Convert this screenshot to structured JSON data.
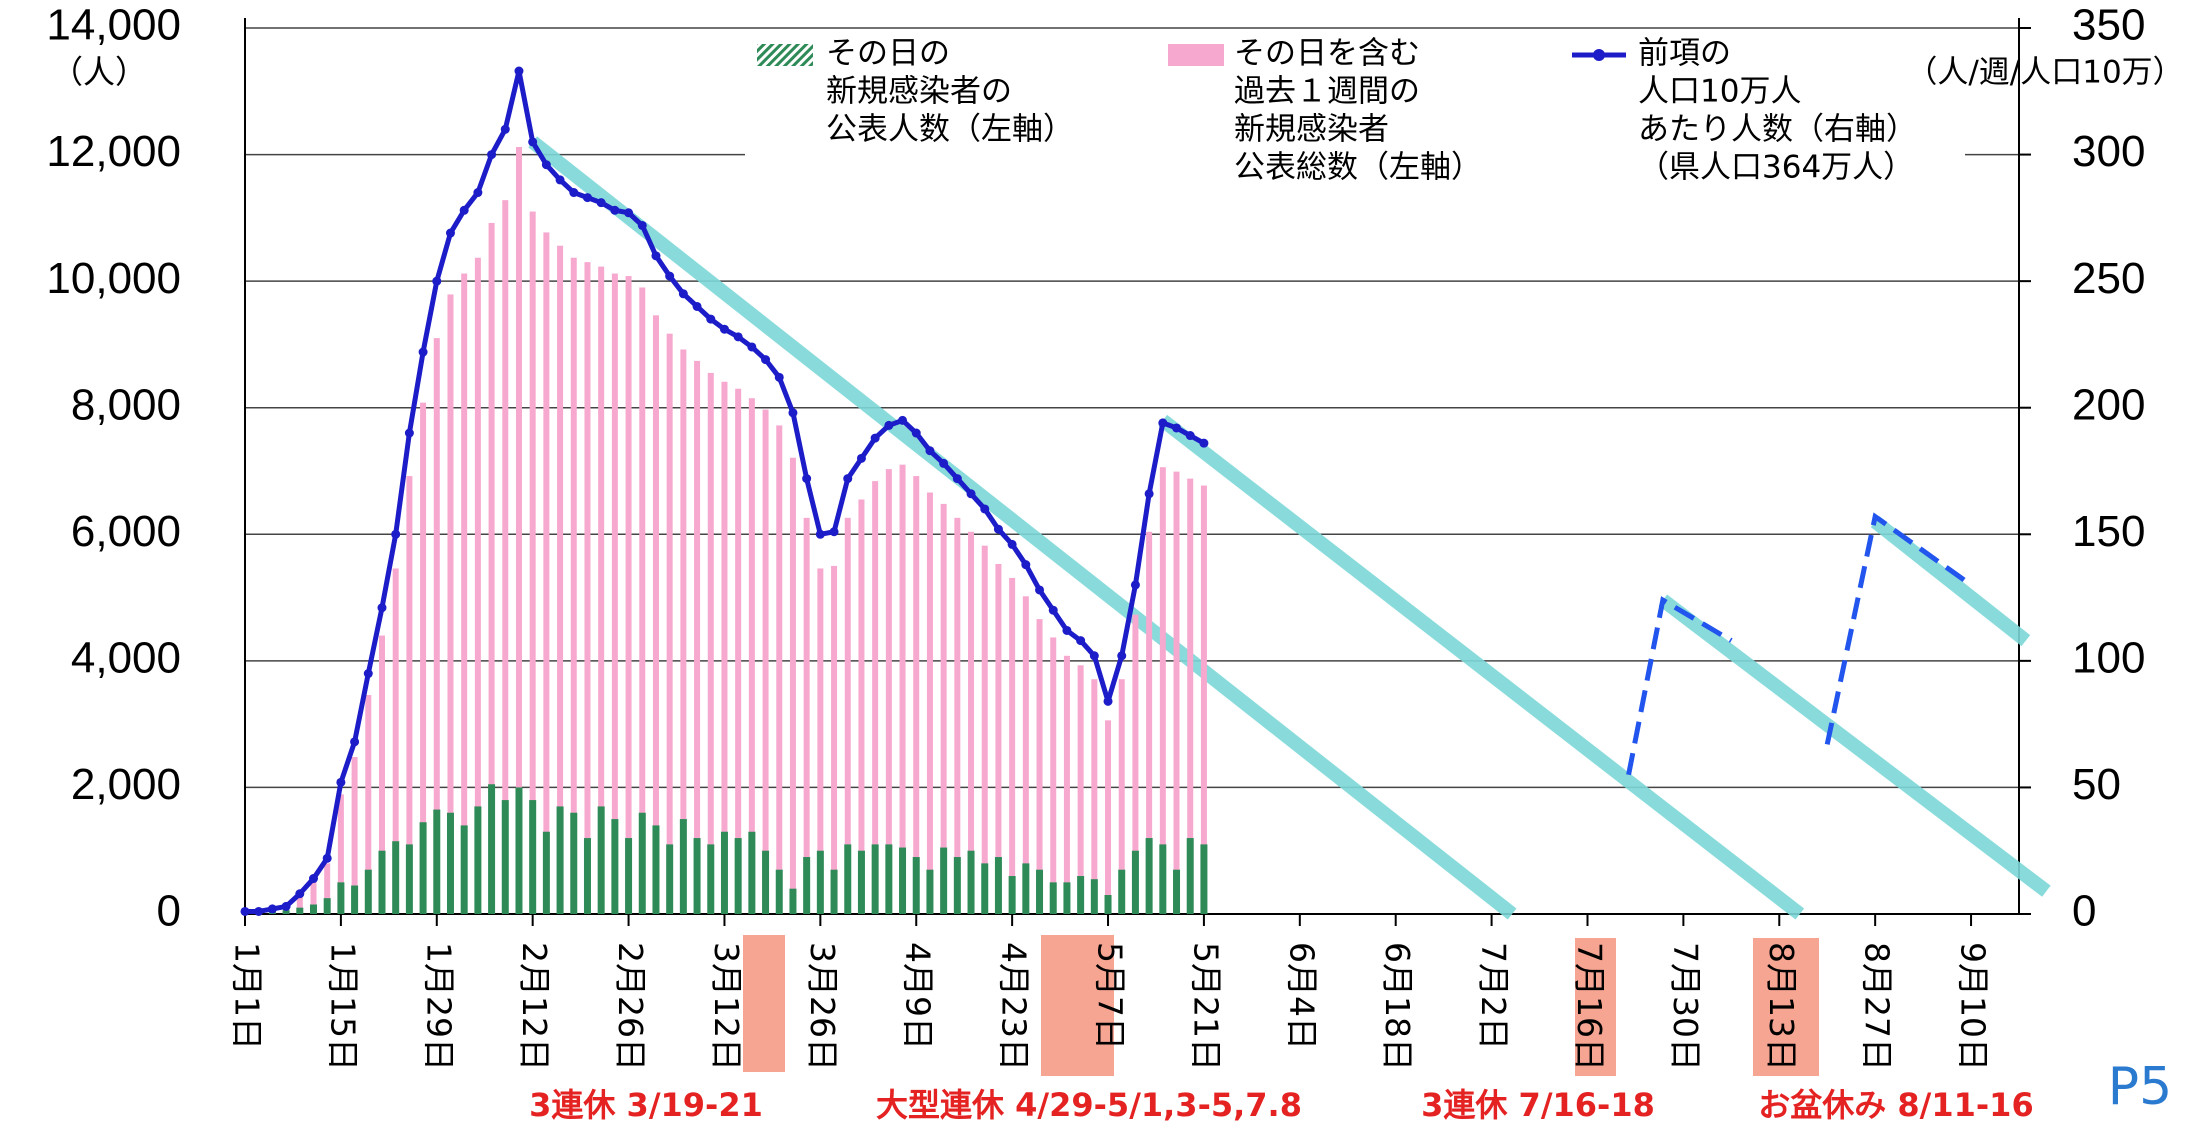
{
  "chart_data": {
    "type": "bar_line",
    "left_unit": "（人）",
    "right_unit": "（人/週/人口10万）",
    "x": [
      0,
      2,
      4,
      6,
      8,
      10,
      12,
      14,
      16,
      18,
      20,
      22,
      24,
      26,
      28,
      30,
      32,
      34,
      36,
      38,
      40,
      42,
      44,
      46,
      48,
      50,
      52,
      54,
      56,
      58,
      60,
      62,
      64,
      66,
      68,
      70,
      72,
      74,
      76,
      78,
      80,
      82,
      84,
      86,
      88,
      90,
      92,
      94,
      96,
      98,
      100,
      102,
      104,
      106,
      108,
      110,
      112,
      114,
      116,
      118,
      120,
      122,
      124,
      126,
      128,
      130,
      132,
      134,
      136,
      138,
      140
    ],
    "series": [
      {
        "name": [
          "その日を含む",
          "過去１週間の",
          "新規感染者",
          "公表総数（左軸）"
        ],
        "kind": "bar",
        "color": "#f7a8cf",
        "values": [
          40,
          40,
          70,
          110,
          290,
          510,
          800,
          1890,
          2480,
          3460,
          4400,
          5460,
          6920,
          8080,
          9100,
          9790,
          10120,
          10370,
          10920,
          11280,
          12120,
          11100,
          10770,
          10560,
          10370,
          10300,
          10230,
          10120,
          10080,
          9900,
          9460,
          9170,
          8920,
          8740,
          8550,
          8410,
          8300,
          8150,
          7970,
          7720,
          7210,
          6260,
          5460,
          5500,
          6260,
          6550,
          6840,
          7030,
          7100,
          6920,
          6660,
          6480,
          6260,
          6040,
          5820,
          5530,
          5310,
          5020,
          4660,
          4370,
          4080,
          3930,
          3710,
          3060,
          3710,
          4730,
          6040,
          7060,
          6990,
          6880,
          6770
        ]
      },
      {
        "name": [
          "その日の",
          "新規感染者の",
          "公表人数（左軸）"
        ],
        "kind": "bar",
        "color": "#2e8b57",
        "values": [
          20,
          10,
          40,
          60,
          100,
          150,
          250,
          500,
          450,
          700,
          1000,
          1150,
          1100,
          1450,
          1650,
          1600,
          1400,
          1700,
          2050,
          1800,
          2000,
          1800,
          1300,
          1700,
          1600,
          1200,
          1700,
          1500,
          1200,
          1600,
          1400,
          1100,
          1500,
          1200,
          1100,
          1300,
          1200,
          1300,
          1000,
          700,
          400,
          900,
          1000,
          700,
          1100,
          1000,
          1100,
          1100,
          1050,
          900,
          700,
          1050,
          900,
          1000,
          800,
          900,
          600,
          800,
          700,
          500,
          500,
          600,
          550,
          300,
          700,
          1000,
          1200,
          1100,
          700,
          1200,
          1100
        ]
      },
      {
        "name": [
          "前項の",
          "人口10万人",
          "あたり人数（右軸）",
          "（県人口364万人）"
        ],
        "kind": "line",
        "axis": "y2",
        "color": "#1c1cc8",
        "values": [
          1,
          1,
          2,
          3,
          8,
          14,
          22,
          52,
          68,
          95,
          121,
          150,
          190,
          222,
          250,
          269,
          278,
          285,
          300,
          310,
          333,
          305,
          296,
          290,
          285,
          283,
          281,
          278,
          277,
          272,
          260,
          252,
          245,
          240,
          235,
          231,
          228,
          224,
          219,
          212,
          198,
          172,
          150,
          151,
          172,
          180,
          188,
          193,
          195,
          190,
          183,
          178,
          172,
          166,
          160,
          152,
          146,
          138,
          128,
          120,
          112,
          108,
          102,
          84,
          102,
          130,
          166,
          194,
          192,
          189,
          186
        ]
      }
    ],
    "projections": [
      {
        "color": "#2255ee",
        "x": [
          202,
          207,
          217
        ],
        "values": [
          55,
          124,
          108
        ]
      },
      {
        "color": "#2255ee",
        "x": [
          231,
          238,
          252
        ],
        "values": [
          67,
          157,
          130
        ]
      }
    ],
    "trend_lines": {
      "color": "#7dd8d8",
      "lines": [
        {
          "x": [
            42,
            185
          ],
          "values": [
            305,
            0
          ]
        },
        {
          "x": [
            134,
            227
          ],
          "values": [
            195,
            0
          ]
        },
        {
          "x": [
            207,
            263
          ],
          "values": [
            124,
            9
          ]
        },
        {
          "x": [
            238,
            260
          ],
          "values": [
            155,
            108
          ]
        }
      ]
    },
    "xlim": [
      0,
      259
    ],
    "xticks": [
      {
        "value": 0,
        "label": "1月1日"
      },
      {
        "value": 14,
        "label": "1月15日"
      },
      {
        "value": 28,
        "label": "1月29日"
      },
      {
        "value": 42,
        "label": "2月12日"
      },
      {
        "value": 56,
        "label": "2月26日"
      },
      {
        "value": 70,
        "label": "3月12日"
      },
      {
        "value": 84,
        "label": "3月26日"
      },
      {
        "value": 98,
        "label": "4月9日"
      },
      {
        "value": 112,
        "label": "4月23日"
      },
      {
        "value": 126,
        "label": "5月7日"
      },
      {
        "value": 140,
        "label": "5月21日"
      },
      {
        "value": 154,
        "label": "6月4日"
      },
      {
        "value": 168,
        "label": "6月18日"
      },
      {
        "value": 182,
        "label": "7月2日"
      },
      {
        "value": 196,
        "label": "7月16日"
      },
      {
        "value": 210,
        "label": "7月30日"
      },
      {
        "value": 224,
        "label": "8月13日"
      },
      {
        "value": 238,
        "label": "8月27日"
      },
      {
        "value": 252,
        "label": "9月10日"
      }
    ],
    "ylim": [
      0,
      14000
    ],
    "yticks": [
      0,
      {
        "value": 2000,
        "label": "2,000"
      },
      {
        "value": 4000,
        "label": "4,000"
      },
      {
        "value": 6000,
        "label": "6,000"
      },
      {
        "value": 8000,
        "label": "8,000"
      },
      {
        "value": 10000,
        "label": "10,000"
      },
      {
        "value": 12000,
        "label": "12,000"
      },
      {
        "value": 14000,
        "label": "14,000"
      }
    ],
    "y2lim": [
      0,
      350
    ],
    "y2ticks": [
      0,
      50,
      100,
      150,
      200,
      250,
      300,
      350
    ],
    "grid": true,
    "holidays": [
      "3連休 3/19-21",
      "大型連休 4/29-5/1,3-5,7.8",
      "3連休 7/16-18",
      "お盆休み 8/11-16"
    ],
    "page_label": "P5"
  }
}
